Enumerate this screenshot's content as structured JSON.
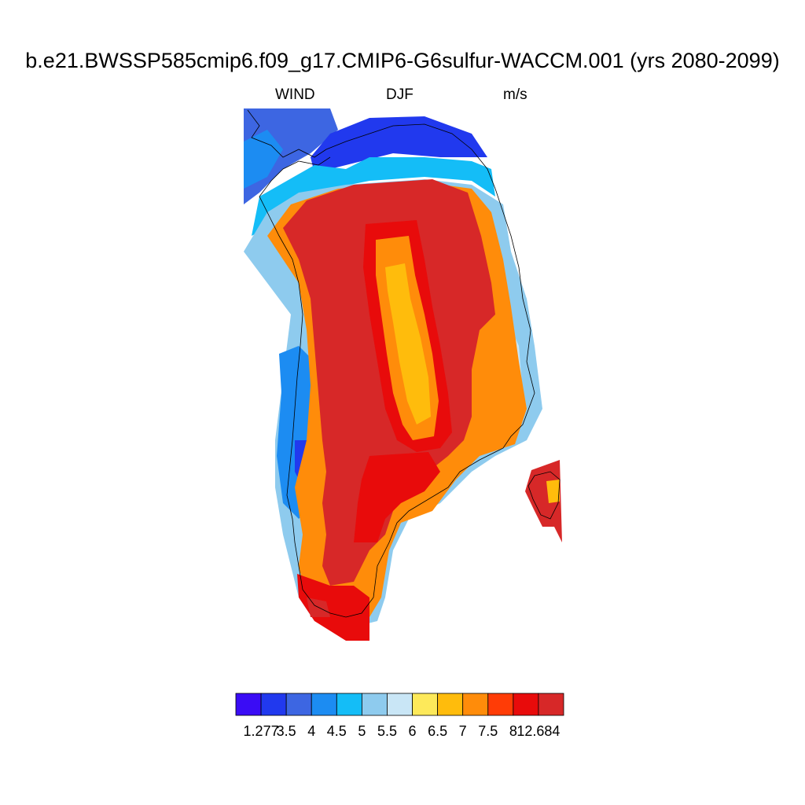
{
  "title": "b.e21.BWSSP585cmip6.f09_g17.CMIP6-G6sulfur-WACCM.001 (yrs 2080-2099)",
  "subtitle": {
    "left": "WIND",
    "center": "DJF",
    "right": "m/s"
  },
  "colorbar": {
    "colors": [
      "#3a0cf5",
      "#2139ee",
      "#3d66e2",
      "#1c8cf2",
      "#14bdf7",
      "#8ecbee",
      "#c9e6f6",
      "#fde95a",
      "#ffbc0c",
      "#ff8c0a",
      "#ff3c06",
      "#e80b0b",
      "#d72828"
    ],
    "labels": [
      "1.277",
      "3.5",
      "4",
      "4.5",
      "5",
      "5.5",
      "6",
      "6.5",
      "7",
      "7.5",
      "8",
      "12.684"
    ]
  },
  "map": {
    "region": "Greenland",
    "field": "WIND"
  }
}
